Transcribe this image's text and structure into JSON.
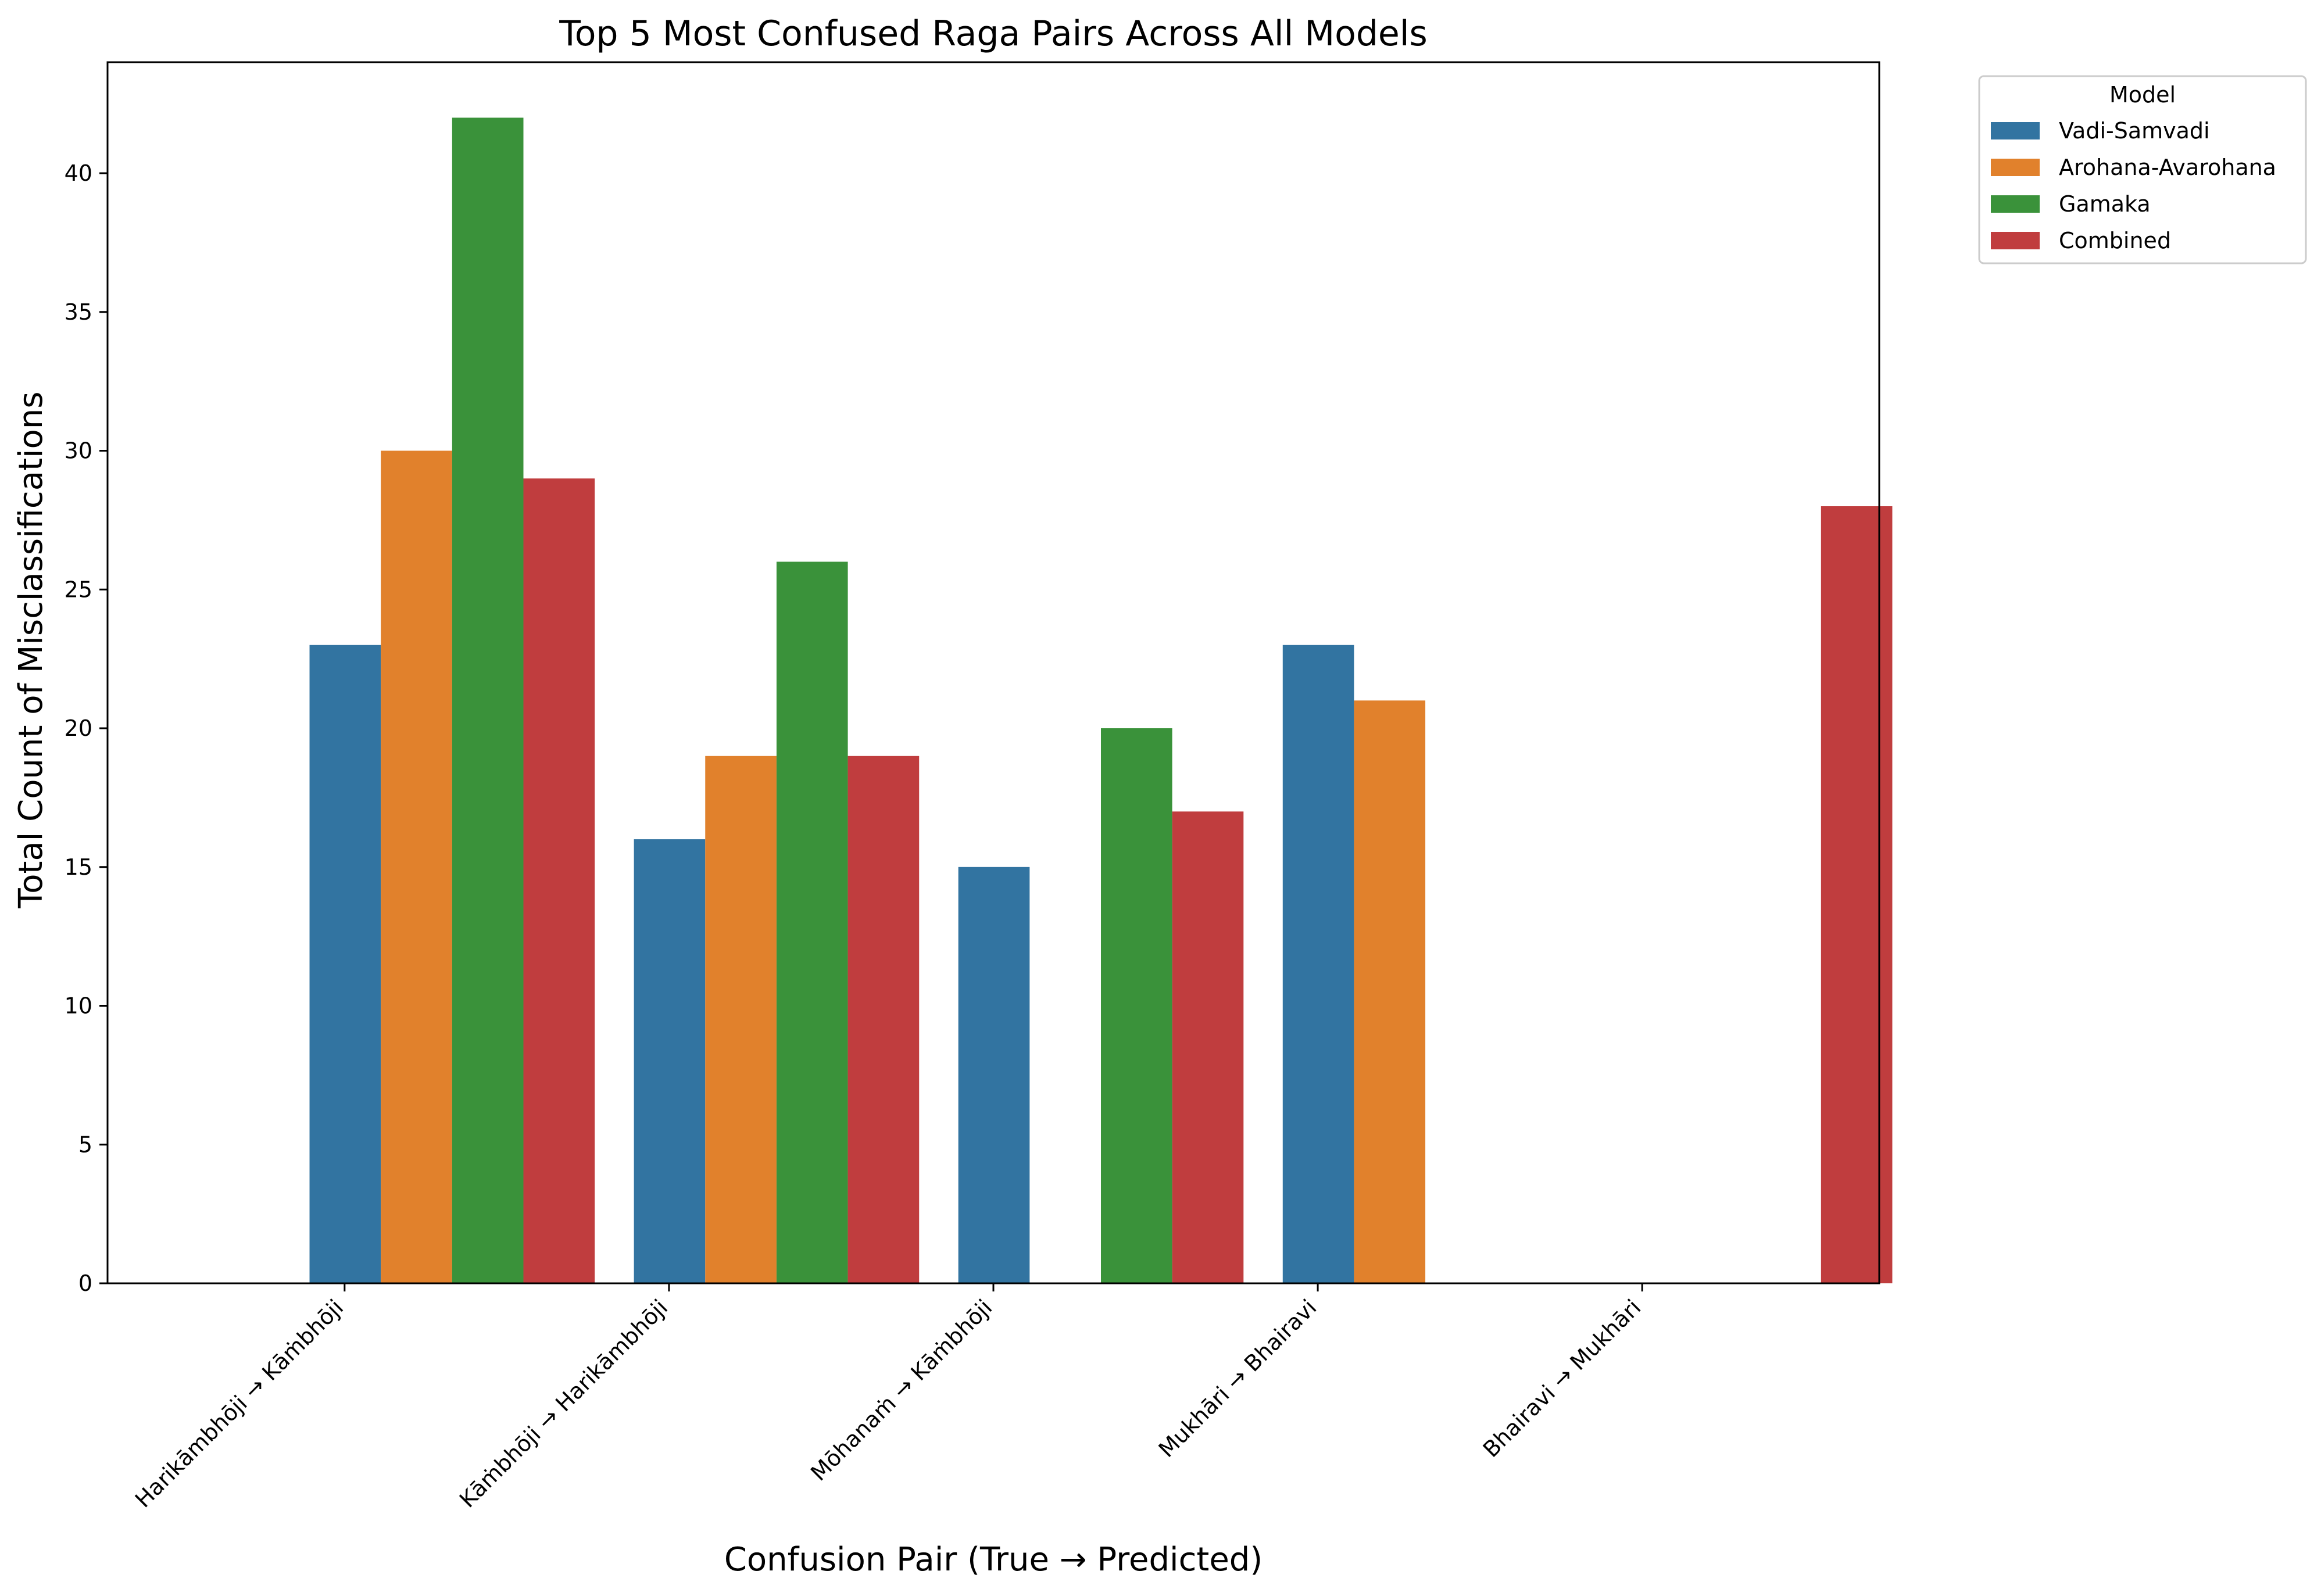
{
  "chart_data": {
    "type": "bar",
    "title": "Top 5 Most Confused Raga Pairs Across All Models",
    "xlabel": "Confusion Pair (True → Predicted)",
    "ylabel": "Total Count of Misclassifications",
    "ylim": [
      0,
      44
    ],
    "yticks": [
      0,
      5,
      10,
      15,
      20,
      25,
      30,
      35,
      40
    ],
    "grid": false,
    "categories": [
      "Harikāmbhōji → Kāṁbhōji",
      "Kāṁbhōji → Harikāmbhōji",
      "Mōhanaṁ → Kāṁbhōji",
      "Mukhāri → Bhairavi",
      "Bhairavi → Mukhāri"
    ],
    "series": [
      {
        "name": "Vadi-Samvadi",
        "color": "#3274a1",
        "values": [
          23,
          16,
          15,
          23,
          null
        ]
      },
      {
        "name": "Arohana-Avarohana",
        "color": "#e1812c",
        "values": [
          30,
          19,
          null,
          21,
          null
        ]
      },
      {
        "name": "Gamaka",
        "color": "#3a923a",
        "values": [
          42,
          26,
          20,
          null,
          null
        ]
      },
      {
        "name": "Combined",
        "color": "#c03d3e",
        "values": [
          29,
          19,
          17,
          null,
          28
        ]
      }
    ],
    "legend": {
      "title": "Model",
      "placement": "outside-top-right"
    }
  }
}
